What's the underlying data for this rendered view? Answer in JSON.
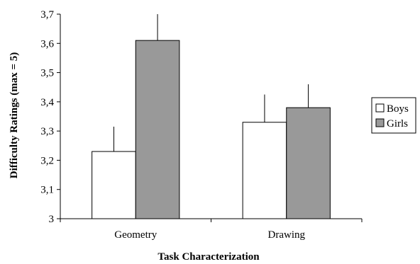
{
  "chart_data": {
    "type": "bar",
    "categories": [
      "Geometry",
      "Drawing"
    ],
    "series": [
      {
        "name": "Boys",
        "values": [
          3.23,
          3.33
        ],
        "error": [
          0.085,
          0.095
        ],
        "color": "#ffffff"
      },
      {
        "name": "Girls",
        "values": [
          3.61,
          3.38
        ],
        "error": [
          0.09,
          0.08
        ],
        "color": "#999999"
      }
    ],
    "xlabel": "Task Characterization",
    "ylabel": "Difficulty Ratings (max = 5)",
    "ylim": [
      3,
      3.7
    ],
    "yticks": [
      {
        "value": 3,
        "label": "3"
      },
      {
        "value": 3.1,
        "label": "3,1"
      },
      {
        "value": 3.2,
        "label": "3,2"
      },
      {
        "value": 3.3,
        "label": "3,3"
      },
      {
        "value": 3.4,
        "label": "3,4"
      },
      {
        "value": 3.5,
        "label": "3,5"
      },
      {
        "value": 3.6,
        "label": "3,6"
      },
      {
        "value": 3.7,
        "label": "3,7"
      }
    ],
    "grid": false,
    "legend_position": "right"
  }
}
